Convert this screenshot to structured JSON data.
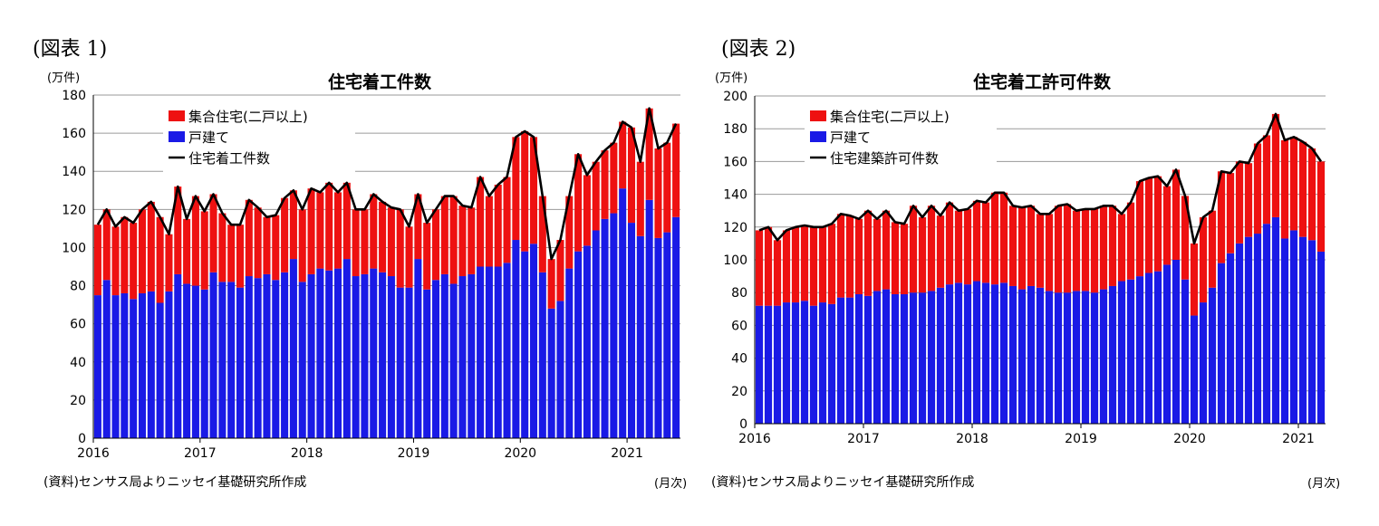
{
  "colors": {
    "multi": "#ee1111",
    "single": "#1a1ae6",
    "total_line": "#000000",
    "grid": "#9a9a9a"
  },
  "chart_data": [
    {
      "type": "bar",
      "stacked": true,
      "figure_label": "(図表 1)",
      "title": "住宅着工件数",
      "ylabel": "(万件)",
      "xlabel": "(月次)",
      "source": "(資料)センサス局よりニッセイ基礎研究所作成",
      "ylim": [
        0,
        180
      ],
      "yticks": [
        0,
        20,
        40,
        60,
        80,
        100,
        120,
        140,
        160,
        180
      ],
      "x_year_labels": [
        "2016",
        "2017",
        "2018",
        "2019",
        "2020",
        "2021"
      ],
      "start": "2016-01",
      "grid": true,
      "legend_position": "top-left",
      "legend": [
        "集合住宅(二戸以上)",
        "戸建て",
        "住宅着工件数"
      ],
      "series": [
        {
          "name": "戸建て",
          "color_key": "single",
          "values": [
            75,
            83,
            75,
            76,
            73,
            76,
            77,
            71,
            77,
            86,
            81,
            80,
            78,
            87,
            82,
            82,
            79,
            85,
            84,
            86,
            83,
            87,
            94,
            82,
            86,
            89,
            88,
            89,
            94,
            85,
            86,
            89,
            87,
            85,
            79,
            79,
            94,
            78,
            83,
            86,
            81,
            85,
            86,
            90,
            90,
            90,
            92,
            104,
            98,
            102,
            87,
            68,
            72,
            89,
            98,
            101,
            109,
            115,
            118,
            131,
            113,
            106,
            125,
            105,
            108,
            116
          ]
        },
        {
          "name": "集合住宅(二戸以上)",
          "color_key": "multi",
          "values": [
            37,
            37,
            36,
            40,
            40,
            44,
            47,
            45,
            30,
            46,
            34,
            47,
            41,
            41,
            36,
            30,
            33,
            40,
            37,
            30,
            34,
            39,
            36,
            38,
            45,
            40,
            46,
            40,
            40,
            35,
            34,
            39,
            37,
            36,
            41,
            32,
            34,
            35,
            37,
            41,
            46,
            37,
            35,
            47,
            37,
            43,
            45,
            54,
            63,
            56,
            40,
            26,
            32,
            38,
            51,
            37,
            36,
            36,
            37,
            35,
            50,
            39,
            48,
            47,
            47,
            49
          ]
        },
        {
          "name": "住宅着工件数",
          "type": "line",
          "color_key": "total_line",
          "values": [
            112,
            120,
            111,
            116,
            113,
            120,
            124,
            116,
            107,
            132,
            115,
            127,
            119,
            128,
            118,
            112,
            112,
            125,
            121,
            116,
            117,
            126,
            130,
            120,
            131,
            129,
            134,
            129,
            134,
            120,
            120,
            128,
            124,
            121,
            120,
            111,
            128,
            113,
            120,
            127,
            127,
            122,
            121,
            137,
            127,
            133,
            137,
            158,
            161,
            158,
            127,
            94,
            104,
            127,
            149,
            138,
            145,
            151,
            155,
            166,
            163,
            145,
            173,
            152,
            155,
            165
          ]
        }
      ]
    },
    {
      "type": "bar",
      "stacked": true,
      "figure_label": "(図表 2)",
      "title": "住宅着工許可件数",
      "ylabel": "(万件)",
      "xlabel": "(月次)",
      "source": "(資料)センサス局よりニッセイ基礎研究所作成",
      "ylim": [
        0,
        200
      ],
      "yticks": [
        0,
        20,
        40,
        60,
        80,
        100,
        120,
        140,
        160,
        180,
        200
      ],
      "x_year_labels": [
        "2016",
        "2017",
        "2018",
        "2019",
        "2020",
        "2021"
      ],
      "start": "2016-01",
      "grid": true,
      "legend_position": "top-left",
      "legend": [
        "集合住宅(二戸以上)",
        "戸建て",
        "住宅建築許可件数"
      ],
      "series": [
        {
          "name": "戸建て",
          "color_key": "single",
          "values": [
            72,
            72,
            72,
            74,
            74,
            75,
            72,
            74,
            73,
            77,
            77,
            79,
            78,
            81,
            82,
            79,
            79,
            80,
            80,
            81,
            83,
            85,
            86,
            85,
            87,
            86,
            85,
            86,
            84,
            82,
            84,
            83,
            81,
            80,
            80,
            81,
            81,
            80,
            82,
            84,
            87,
            88,
            90,
            92,
            93,
            97,
            100,
            88,
            66,
            74,
            83,
            98,
            104,
            110,
            114,
            116,
            122,
            126,
            113,
            118,
            114,
            112,
            105
          ]
        },
        {
          "name": "集合住宅(二戸以上)",
          "color_key": "multi",
          "values": [
            46,
            48,
            40,
            44,
            46,
            46,
            48,
            46,
            49,
            51,
            50,
            46,
            52,
            44,
            48,
            44,
            43,
            53,
            46,
            52,
            44,
            50,
            44,
            46,
            49,
            49,
            56,
            55,
            49,
            50,
            49,
            45,
            47,
            53,
            54,
            49,
            50,
            51,
            51,
            49,
            41,
            47,
            58,
            58,
            58,
            48,
            55,
            51,
            44,
            52,
            47,
            56,
            49,
            50,
            45,
            55,
            54,
            63,
            60,
            57,
            58,
            56,
            55
          ]
        },
        {
          "name": "住宅建築許可件数",
          "type": "line",
          "color_key": "total_line",
          "values": [
            118,
            120,
            112,
            118,
            120,
            121,
            120,
            120,
            122,
            128,
            127,
            125,
            130,
            125,
            130,
            123,
            122,
            133,
            126,
            133,
            127,
            135,
            130,
            131,
            136,
            135,
            141,
            141,
            133,
            132,
            133,
            128,
            128,
            133,
            134,
            130,
            131,
            131,
            133,
            133,
            128,
            135,
            148,
            150,
            151,
            145,
            155,
            139,
            110,
            126,
            130,
            154,
            153,
            160,
            159,
            171,
            176,
            189,
            173,
            175,
            172,
            168,
            160
          ]
        }
      ]
    }
  ]
}
